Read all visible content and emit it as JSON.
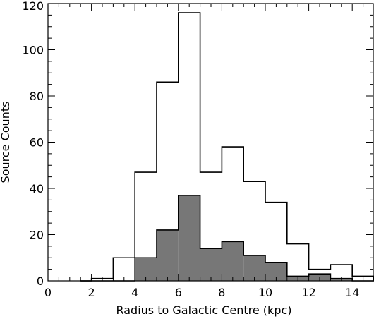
{
  "chart_data": {
    "type": "bar",
    "xlabel": "Radius to Galactic Centre (kpc)",
    "ylabel": "Source Counts",
    "xlim": [
      0,
      15
    ],
    "ylim": [
      0,
      120
    ],
    "x_ticks": [
      "0",
      "2",
      "4",
      "6",
      "8",
      "10",
      "12",
      "14"
    ],
    "y_ticks": [
      "0",
      "20",
      "40",
      "60",
      "80",
      "100",
      "120"
    ],
    "bin_edges": [
      1.5,
      2,
      3,
      4,
      5,
      6,
      7,
      8,
      9,
      10,
      11,
      12,
      13,
      14,
      15
    ],
    "series": [
      {
        "style": "outline",
        "color": "#000000",
        "values": [
          0,
          1,
          10,
          47,
          86,
          116,
          47,
          58,
          43,
          34,
          16,
          5,
          7,
          2
        ]
      },
      {
        "style": "filled",
        "color": "#777777",
        "values": [
          0,
          0,
          0,
          10,
          22,
          37,
          14,
          17,
          11,
          8,
          2,
          3,
          1,
          0
        ]
      }
    ],
    "grid": false,
    "legend": "none"
  }
}
